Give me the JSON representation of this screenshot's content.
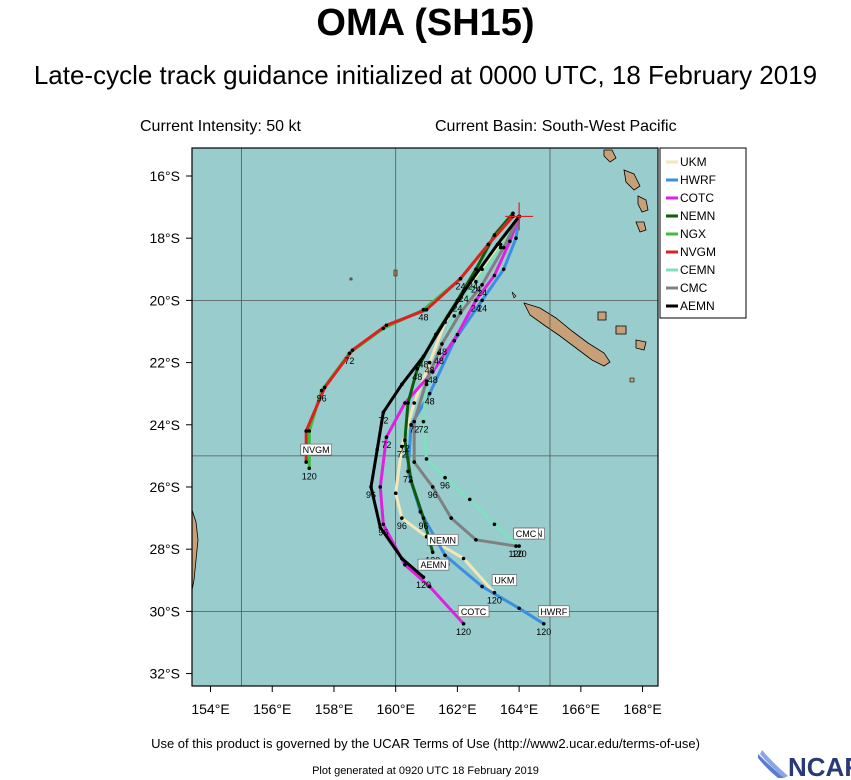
{
  "header": {
    "title": "OMA (SH15)",
    "subtitle": "Late-cycle track guidance initialized at 0000 UTC, 18 February 2019",
    "intensity": "Current Intensity: 50 kt",
    "basin": "Current Basin: South-West Pacific"
  },
  "footer": {
    "terms": "Use of this product is governed by the UCAR Terms of Use (http://www2.ucar.edu/terms-of-use)",
    "generated": "Plot generated at 0920 UTC   18 February 2019",
    "logo_text": "NCAR"
  },
  "colors": {
    "ocean": "#99cccc",
    "land": "#c8a078",
    "grid": "#555555",
    "current_marker": "#e02020"
  },
  "chart_data": {
    "type": "line",
    "title": "OMA (SH15)",
    "xlabel": "",
    "ylabel": "",
    "x_range": [
      153.4,
      168.5
    ],
    "y_range": [
      -15.1,
      -32.4
    ],
    "x_ticks": [
      154,
      156,
      158,
      160,
      162,
      164,
      166,
      168
    ],
    "x_tick_labels": [
      "154°E",
      "156°E",
      "158°E",
      "160°E",
      "162°E",
      "164°E",
      "166°E",
      "168°E"
    ],
    "y_ticks": [
      -16,
      -18,
      -20,
      -22,
      -24,
      -26,
      -28,
      -30,
      -32
    ],
    "y_tick_labels": [
      "16°S",
      "18°S",
      "20°S",
      "22°S",
      "24°S",
      "26°S",
      "28°S",
      "30°S",
      "32°S"
    ],
    "grid_lon": [
      155,
      160,
      165
    ],
    "grid_lat": [
      -20,
      -25,
      -30
    ],
    "grid": true,
    "legend_position": "top-right",
    "current_position": [
      164.0,
      -17.3
    ],
    "series": [
      {
        "name": "UKM",
        "color": "#f5e6b8",
        "points": [
          [
            164.0,
            -17.3
          ],
          [
            163.4,
            -18.2
          ],
          [
            162.8,
            -19.0
          ],
          [
            162.2,
            -19.7
          ],
          [
            161.6,
            -20.7
          ],
          [
            161.1,
            -22.0
          ],
          [
            160.6,
            -23.3
          ],
          [
            160.2,
            -24.7
          ],
          [
            160.0,
            -26.2
          ],
          [
            160.2,
            -27.0
          ],
          [
            161.0,
            -27.6
          ],
          [
            162.2,
            -28.3
          ],
          [
            163.2,
            -29.4
          ]
        ],
        "hour_labels": [
          {
            "text": "24",
            "at": [
              162.2,
              -19.7
            ]
          },
          {
            "text": "48",
            "at": [
              161.1,
              -22.0
            ]
          },
          {
            "text": "72",
            "at": [
              160.2,
              -24.7
            ]
          },
          {
            "text": "96",
            "at": [
              160.2,
              -27.0
            ]
          },
          {
            "text": "120",
            "at": [
              163.2,
              -29.4
            ]
          }
        ],
        "end_tag": "UKM"
      },
      {
        "name": "HWRF",
        "color": "#3b8fe0",
        "points": [
          [
            164.0,
            -17.3
          ],
          [
            163.9,
            -18.0
          ],
          [
            163.5,
            -19.0
          ],
          [
            162.8,
            -20.0
          ],
          [
            161.9,
            -21.3
          ],
          [
            161.1,
            -23.0
          ],
          [
            160.5,
            -24.0
          ],
          [
            160.4,
            -25.5
          ],
          [
            160.8,
            -26.8
          ],
          [
            161.6,
            -28.2
          ],
          [
            162.8,
            -29.2
          ],
          [
            164.0,
            -29.9
          ],
          [
            164.8,
            -30.4
          ]
        ],
        "hour_labels": [
          {
            "text": "24",
            "at": [
              162.8,
              -20.0
            ]
          },
          {
            "text": "48",
            "at": [
              161.1,
              -23.0
            ]
          },
          {
            "text": "72",
            "at": [
              160.4,
              -25.5
            ]
          },
          {
            "text": "96",
            "at": [
              161.6,
              -28.2
            ]
          },
          {
            "text": "120",
            "at": [
              164.8,
              -30.4
            ]
          }
        ],
        "end_tag": "HWRF"
      },
      {
        "name": "COTC",
        "color": "#e020e0",
        "points": [
          [
            164.0,
            -17.3
          ],
          [
            163.7,
            -18.1
          ],
          [
            163.2,
            -19.2
          ],
          [
            162.6,
            -20.0
          ],
          [
            162.0,
            -21.1
          ],
          [
            161.2,
            -22.3
          ],
          [
            160.3,
            -23.3
          ],
          [
            159.7,
            -24.4
          ],
          [
            159.5,
            -26.0
          ],
          [
            159.6,
            -27.2
          ],
          [
            160.3,
            -28.5
          ],
          [
            161.1,
            -29.2
          ],
          [
            162.2,
            -30.4
          ]
        ],
        "hour_labels": [
          {
            "text": "24",
            "at": [
              162.6,
              -20.0
            ]
          },
          {
            "text": "48",
            "at": [
              161.2,
              -22.3
            ]
          },
          {
            "text": "72",
            "at": [
              159.7,
              -24.4
            ]
          },
          {
            "text": "96",
            "at": [
              159.6,
              -27.2
            ]
          },
          {
            "text": "120",
            "at": [
              162.2,
              -30.4
            ]
          }
        ],
        "end_tag": "COTC"
      },
      {
        "name": "NEMN",
        "color": "#0d5c0d",
        "points": [
          [
            163.8,
            -17.2
          ],
          [
            163.2,
            -17.9
          ],
          [
            162.6,
            -19.0
          ],
          [
            162.0,
            -20.0
          ],
          [
            161.3,
            -21.1
          ],
          [
            160.7,
            -22.2
          ],
          [
            160.4,
            -23.3
          ],
          [
            160.3,
            -24.5
          ],
          [
            160.5,
            -25.8
          ],
          [
            160.9,
            -27.0
          ],
          [
            161.2,
            -28.1
          ]
        ],
        "hour_labels": [
          {
            "text": "24",
            "at": [
              162.0,
              -20.0
            ]
          },
          {
            "text": "48",
            "at": [
              160.7,
              -22.2
            ]
          },
          {
            "text": "72",
            "at": [
              160.3,
              -24.5
            ]
          },
          {
            "text": "96",
            "at": [
              160.9,
              -27.0
            ]
          },
          {
            "text": "120",
            "at": [
              161.2,
              -28.1
            ]
          }
        ],
        "end_tag": "NEMN"
      },
      {
        "name": "NGX",
        "color": "#3cc03c",
        "points": [
          [
            163.8,
            -17.3
          ],
          [
            163.0,
            -18.2
          ],
          [
            162.1,
            -19.3
          ],
          [
            160.9,
            -20.3
          ],
          [
            159.6,
            -20.9
          ],
          [
            158.5,
            -21.7
          ],
          [
            157.6,
            -22.9
          ],
          [
            157.2,
            -24.2
          ],
          [
            157.2,
            -25.4
          ]
        ],
        "hour_labels": [
          {
            "text": "24",
            "at": [
              162.1,
              -19.3
            ]
          },
          {
            "text": "48",
            "at": [
              160.9,
              -20.3
            ]
          },
          {
            "text": "72",
            "at": [
              158.5,
              -21.7
            ]
          },
          {
            "text": "96",
            "at": [
              157.6,
              -22.9
            ]
          },
          {
            "text": "120",
            "at": [
              157.2,
              -25.4
            ]
          }
        ],
        "end_tag": ""
      },
      {
        "name": "NVGM",
        "color": "#dd2020",
        "points": [
          [
            163.8,
            -17.3
          ],
          [
            163.0,
            -18.2
          ],
          [
            162.1,
            -19.3
          ],
          [
            161.0,
            -20.3
          ],
          [
            159.7,
            -20.8
          ],
          [
            158.6,
            -21.6
          ],
          [
            157.7,
            -22.8
          ],
          [
            157.1,
            -24.2
          ],
          [
            157.1,
            -25.2
          ]
        ],
        "hour_labels": [],
        "end_tag": "NVGM"
      },
      {
        "name": "CEMN",
        "color": "#7fe0c0",
        "points": [
          [
            164.0,
            -17.3
          ],
          [
            163.4,
            -18.3
          ],
          [
            162.6,
            -19.4
          ],
          [
            161.9,
            -20.5
          ],
          [
            161.4,
            -21.7
          ],
          [
            161.0,
            -22.7
          ],
          [
            160.9,
            -23.9
          ],
          [
            161.0,
            -25.1
          ],
          [
            161.6,
            -25.7
          ],
          [
            162.4,
            -26.4
          ],
          [
            163.2,
            -27.2
          ],
          [
            164.0,
            -27.9
          ]
        ],
        "hour_labels": [
          {
            "text": "24",
            "at": [
              162.6,
              -19.4
            ]
          },
          {
            "text": "48",
            "at": [
              161.4,
              -21.7
            ]
          },
          {
            "text": "72",
            "at": [
              160.9,
              -23.9
            ]
          },
          {
            "text": "96",
            "at": [
              161.6,
              -25.7
            ]
          },
          {
            "text": "120",
            "at": [
              164.0,
              -27.9
            ]
          }
        ],
        "end_tag": "CEMN"
      },
      {
        "name": "CMC",
        "color": "#808080",
        "points": [
          [
            164.0,
            -17.3
          ],
          [
            163.5,
            -18.3
          ],
          [
            162.8,
            -19.5
          ],
          [
            162.1,
            -20.4
          ],
          [
            161.5,
            -21.4
          ],
          [
            161.0,
            -22.6
          ],
          [
            160.6,
            -23.9
          ],
          [
            160.6,
            -25.2
          ],
          [
            161.2,
            -26.0
          ],
          [
            161.8,
            -27.0
          ],
          [
            162.6,
            -27.7
          ],
          [
            163.9,
            -27.9
          ]
        ],
        "hour_labels": [
          {
            "text": "24",
            "at": [
              162.8,
              -19.5
            ]
          },
          {
            "text": "48",
            "at": [
              161.5,
              -21.4
            ]
          },
          {
            "text": "72",
            "at": [
              160.6,
              -23.9
            ]
          },
          {
            "text": "96",
            "at": [
              161.2,
              -26.0
            ]
          },
          {
            "text": "120",
            "at": [
              163.9,
              -27.9
            ]
          }
        ],
        "end_tag": "CMC"
      },
      {
        "name": "AEMN",
        "color": "#000000",
        "points": [
          [
            164.0,
            -17.3
          ],
          [
            163.3,
            -18.2
          ],
          [
            162.5,
            -19.3
          ],
          [
            161.7,
            -20.5
          ],
          [
            160.9,
            -21.8
          ],
          [
            160.2,
            -22.7
          ],
          [
            159.6,
            -23.6
          ],
          [
            159.4,
            -24.8
          ],
          [
            159.2,
            -26.0
          ],
          [
            159.5,
            -27.3
          ],
          [
            160.2,
            -28.3
          ],
          [
            160.9,
            -28.9
          ]
        ],
        "hour_labels": [
          {
            "text": "24",
            "at": [
              162.5,
              -19.3
            ]
          },
          {
            "text": "48",
            "at": [
              160.9,
              -21.8
            ]
          },
          {
            "text": "72",
            "at": [
              159.6,
              -23.6
            ]
          },
          {
            "text": "96",
            "at": [
              159.2,
              -26.0
            ]
          },
          {
            "text": "120",
            "at": [
              160.9,
              -28.9
            ]
          }
        ],
        "end_tag": "AEMN"
      }
    ]
  }
}
